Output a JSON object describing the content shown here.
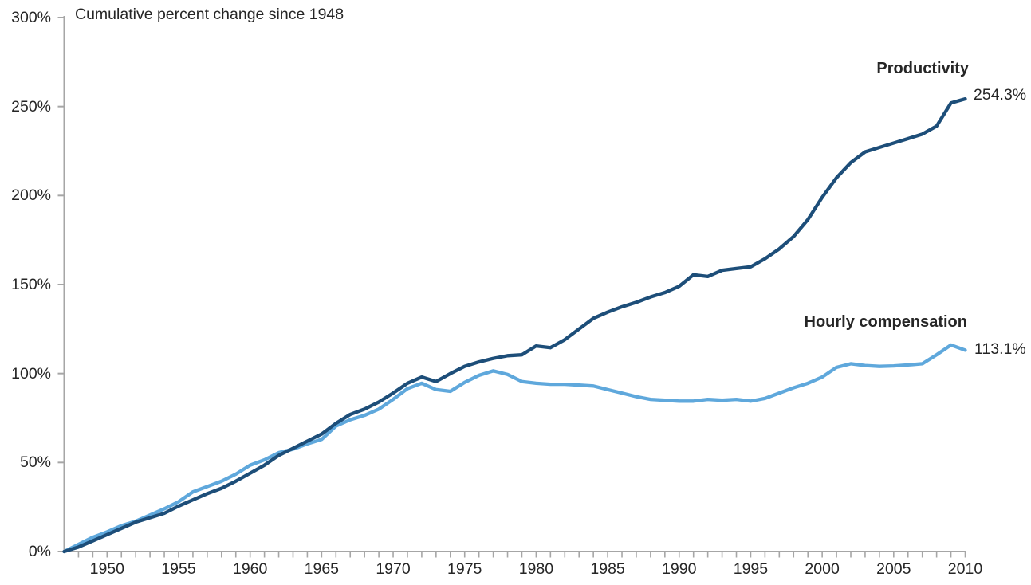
{
  "title": "Cumulative percent change since 1948",
  "series_labels": {
    "productivity": "Productivity",
    "compensation": "Hourly compensation"
  },
  "end_labels": {
    "productivity": "254.3%",
    "compensation": "113.1%"
  },
  "colors": {
    "productivity_line": "#1d4e79",
    "compensation_line": "#5fa8dc",
    "axis": "#a6a6a6",
    "text": "#262626"
  },
  "y_axis": {
    "ticks": [
      {
        "value": 0,
        "label": "0%"
      },
      {
        "value": 50,
        "label": "50%"
      },
      {
        "value": 100,
        "label": "100%"
      },
      {
        "value": 150,
        "label": "150%"
      },
      {
        "value": 200,
        "label": "200%"
      },
      {
        "value": 250,
        "label": "250%"
      },
      {
        "value": 300,
        "label": "300%"
      }
    ]
  },
  "x_axis": {
    "labeled_years": [
      1950,
      1955,
      1960,
      1965,
      1970,
      1975,
      1980,
      1985,
      1990,
      1995,
      2000,
      2005,
      2010
    ]
  },
  "chart_data": {
    "type": "line",
    "title": "Cumulative percent change since 1948",
    "xlabel": "",
    "ylabel": "Cumulative percent change since 1948",
    "xlim": [
      1947,
      2010
    ],
    "ylim": [
      0,
      300
    ],
    "grid": false,
    "legend_position": "end-of-line labels",
    "x": [
      1947,
      1948,
      1949,
      1950,
      1951,
      1952,
      1953,
      1954,
      1955,
      1956,
      1957,
      1958,
      1959,
      1960,
      1961,
      1962,
      1963,
      1964,
      1965,
      1966,
      1967,
      1968,
      1969,
      1970,
      1971,
      1972,
      1973,
      1974,
      1975,
      1976,
      1977,
      1978,
      1979,
      1980,
      1981,
      1982,
      1983,
      1984,
      1985,
      1986,
      1987,
      1988,
      1989,
      1990,
      1991,
      1992,
      1993,
      1994,
      1995,
      1996,
      1997,
      1998,
      1999,
      2000,
      2001,
      2002,
      2003,
      2004,
      2005,
      2006,
      2007,
      2008,
      2009,
      2010
    ],
    "series": [
      {
        "name": "Productivity",
        "end_value_label": "254.3%",
        "values": [
          0,
          2.5,
          6,
          9.5,
          13,
          16.5,
          19,
          21.5,
          25.5,
          29,
          32.5,
          35.5,
          39.5,
          44,
          48.5,
          54,
          58,
          62,
          66,
          72,
          77,
          80,
          84,
          89,
          94.5,
          98,
          95.5,
          100,
          104,
          106.5,
          108.5,
          110,
          110.5,
          115.5,
          114.5,
          119,
          125,
          131,
          134.5,
          137.5,
          140,
          143,
          145.5,
          149,
          155.5,
          154.5,
          158,
          159,
          160,
          164.5,
          170,
          177,
          186.5,
          199,
          210,
          218.5,
          224.5,
          227,
          229.5,
          232,
          234.5,
          239,
          252,
          254.3
        ]
      },
      {
        "name": "Hourly compensation",
        "end_value_label": "113.1%",
        "values": [
          0,
          4,
          8,
          11,
          14.5,
          17,
          20.5,
          24,
          28,
          33.5,
          36.5,
          39.5,
          43.5,
          48.5,
          51.5,
          55.5,
          57.5,
          60.5,
          63,
          70.5,
          74,
          76.5,
          80,
          85.5,
          91.5,
          94.5,
          91,
          90,
          95,
          99,
          101.5,
          99.5,
          95.5,
          94.5,
          94,
          94,
          93.5,
          93,
          91,
          89,
          87,
          85.5,
          85,
          84.5,
          84.5,
          85.5,
          85,
          85.5,
          84.5,
          86,
          89,
          92,
          94.5,
          98,
          103.5,
          105.5,
          104.5,
          104,
          104.3,
          104.8,
          105.5,
          110.5,
          116,
          113.1
        ]
      }
    ]
  }
}
